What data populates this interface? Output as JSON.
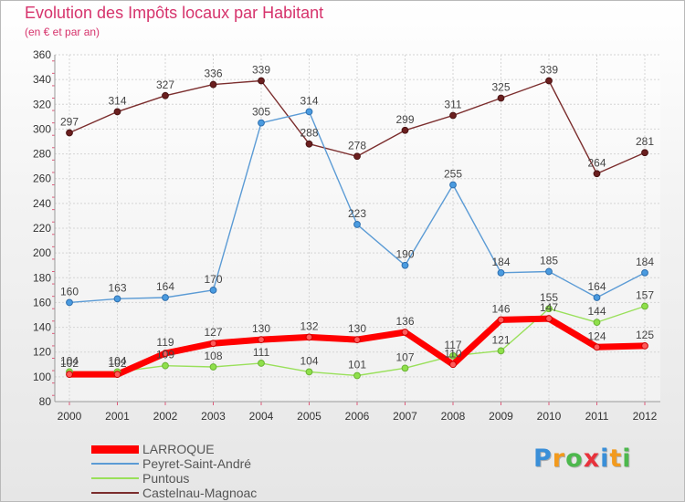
{
  "header": {
    "title": "Evolution des Impôts locaux par Habitant",
    "subtitle": "(en € et par an)"
  },
  "chart_data": {
    "type": "line",
    "title": "Evolution des Impôts locaux par Habitant",
    "subtitle": "(en € et par an)",
    "categories": [
      "2000",
      "2001",
      "2002",
      "2003",
      "2004",
      "2005",
      "2006",
      "2007",
      "2008",
      "2009",
      "2010",
      "2011",
      "2012"
    ],
    "ylim": [
      80,
      360
    ],
    "yticks": [
      80,
      100,
      120,
      140,
      160,
      180,
      200,
      220,
      240,
      260,
      280,
      300,
      320,
      340,
      360
    ],
    "grid": true,
    "legend_position": "bottom-left",
    "series": [
      {
        "name": "LARROQUE",
        "color": "#ff0000",
        "values": [
          102,
          102,
          119,
          127,
          130,
          132,
          130,
          136,
          110,
          146,
          147,
          124,
          125
        ],
        "labels": [
          102,
          102,
          119,
          127,
          130,
          132,
          130,
          136,
          110,
          146,
          147,
          124,
          125
        ]
      },
      {
        "name": "Peyret-Saint-André",
        "color": "#5b9bd5",
        "values": [
          160,
          163,
          164,
          170,
          305,
          314,
          223,
          190,
          255,
          184,
          185,
          164,
          184
        ],
        "labels": [
          160,
          163,
          164,
          170,
          305,
          314,
          223,
          190,
          255,
          184,
          185,
          164,
          184
        ]
      },
      {
        "name": "Puntous",
        "color": "#99e05a",
        "values": [
          104,
          104,
          109,
          108,
          111,
          104,
          101,
          107,
          117,
          121,
          155,
          144,
          157
        ],
        "labels": [
          104,
          104,
          109,
          108,
          111,
          104,
          101,
          107,
          117,
          121,
          155,
          144,
          157
        ]
      },
      {
        "name": "Castelnau-Magnoac",
        "color": "#7b2d2d",
        "values": [
          297,
          314,
          327,
          336,
          339,
          288,
          278,
          299,
          311,
          325,
          339,
          264,
          281
        ],
        "labels": [
          297,
          314,
          327,
          336,
          339,
          288,
          278,
          299,
          311,
          325,
          339,
          264,
          281
        ]
      }
    ]
  },
  "logo": {
    "text": "Proxiti",
    "letters": [
      {
        "ch": "P",
        "color": "#3a8fd8"
      },
      {
        "ch": "r",
        "color": "#f29a1d"
      },
      {
        "ch": "o",
        "color": "#4db84d"
      },
      {
        "ch": "x",
        "color": "#e8323c"
      },
      {
        "ch": "i",
        "color": "#3a8fd8"
      },
      {
        "ch": "t",
        "color": "#f29a1d"
      },
      {
        "ch": "i",
        "color": "#4db84d"
      }
    ]
  }
}
